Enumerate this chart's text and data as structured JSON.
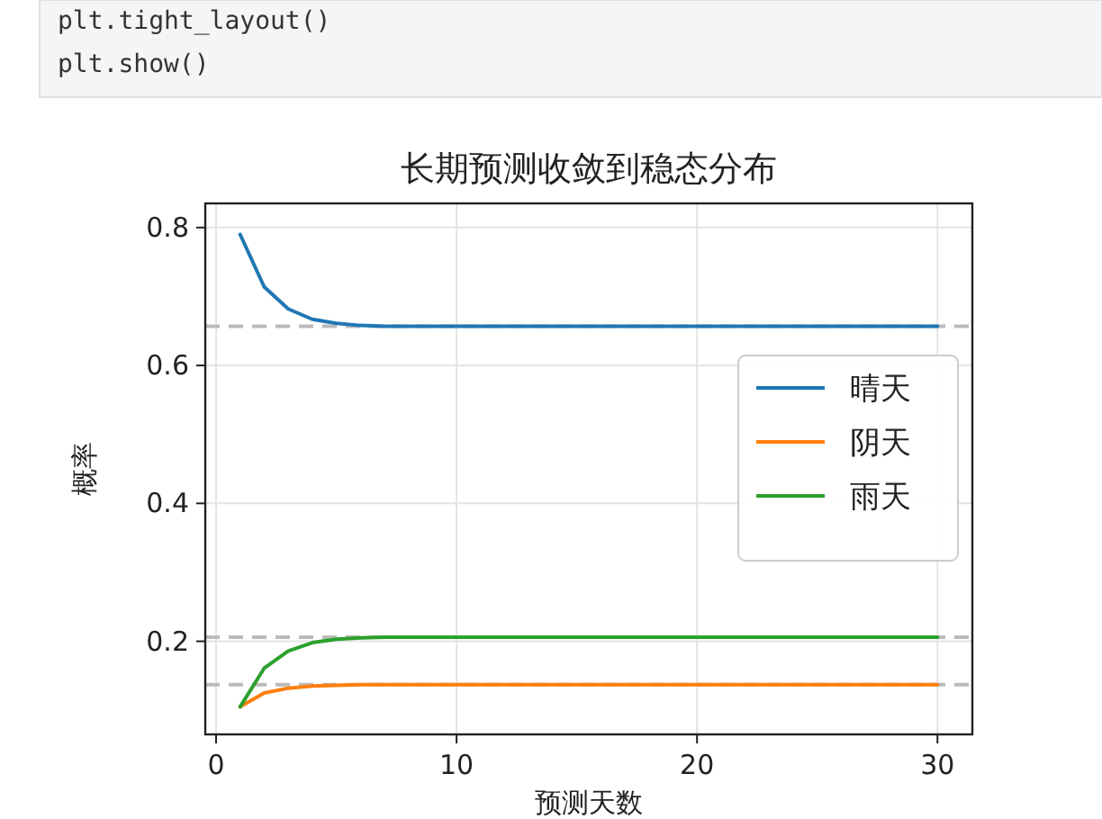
{
  "chart_data": {
    "type": "line",
    "title": "长期预测收敛到稳态分布",
    "xlabel": "预测天数",
    "ylabel": "概率",
    "annotations": [
      "plt.tight_layout()",
      "plt.show()"
    ],
    "x": [
      1,
      2,
      3,
      4,
      5,
      6,
      7,
      8,
      9,
      10,
      11,
      12,
      13,
      14,
      15,
      16,
      17,
      18,
      19,
      20,
      21,
      22,
      23,
      24,
      25,
      26,
      27,
      28,
      29,
      30
    ],
    "series": [
      {
        "name": "晴天",
        "color": "#1f77b4",
        "values": [
          0.79,
          0.714,
          0.682,
          0.667,
          0.661,
          0.658,
          0.657,
          0.657,
          0.657,
          0.657,
          0.657,
          0.657,
          0.657,
          0.657,
          0.657,
          0.657,
          0.657,
          0.657,
          0.657,
          0.657,
          0.657,
          0.657,
          0.657,
          0.657,
          0.657,
          0.657,
          0.657,
          0.657,
          0.657,
          0.657
        ]
      },
      {
        "name": "阴天",
        "color": "#ff7f0e",
        "values": [
          0.105,
          0.125,
          0.132,
          0.135,
          0.136,
          0.137,
          0.137,
          0.137,
          0.137,
          0.137,
          0.137,
          0.137,
          0.137,
          0.137,
          0.137,
          0.137,
          0.137,
          0.137,
          0.137,
          0.137,
          0.137,
          0.137,
          0.137,
          0.137,
          0.137,
          0.137,
          0.137,
          0.137,
          0.137,
          0.137
        ]
      },
      {
        "name": "雨天",
        "color": "#2ca02c",
        "values": [
          0.105,
          0.161,
          0.186,
          0.198,
          0.203,
          0.205,
          0.206,
          0.206,
          0.206,
          0.206,
          0.206,
          0.206,
          0.206,
          0.206,
          0.206,
          0.206,
          0.206,
          0.206,
          0.206,
          0.206,
          0.206,
          0.206,
          0.206,
          0.206,
          0.206,
          0.206,
          0.206,
          0.206,
          0.206,
          0.206
        ]
      }
    ],
    "ref_lines": [
      {
        "axis": "y",
        "value": 0.657,
        "color": "#bbbbbb",
        "line_style": "dashed"
      },
      {
        "axis": "y",
        "value": 0.137,
        "color": "#bbbbbb",
        "line_style": "dashed"
      },
      {
        "axis": "y",
        "value": 0.206,
        "color": "#bbbbbb",
        "line_style": "dashed"
      }
    ],
    "xlim": [
      -0.45,
      31.45
    ],
    "ylim": [
      0.065,
      0.835
    ],
    "xticks": [
      0,
      10,
      20,
      30
    ],
    "yticks": [
      {
        "value": 0.2,
        "label": "0.2"
      },
      {
        "value": 0.4,
        "label": "0.4"
      },
      {
        "value": 0.6,
        "label": "0.6"
      },
      {
        "value": 0.8,
        "label": "0.8"
      }
    ],
    "grid": true,
    "legend": "right",
    "line_style": "solid",
    "marker": "none"
  }
}
